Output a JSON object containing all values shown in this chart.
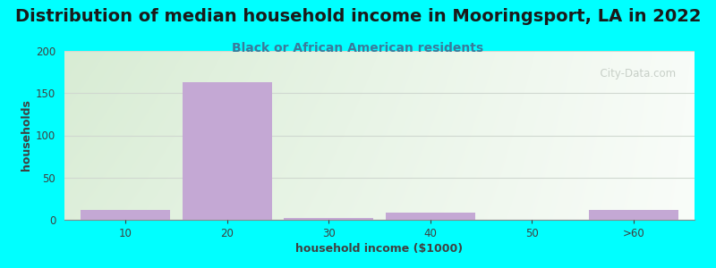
{
  "title": "Distribution of median household income in Mooringsport, LA in 2022",
  "subtitle": "Black or African American residents",
  "xlabel": "household income ($1000)",
  "ylabel": "households",
  "background_color": "#00FFFF",
  "bar_color": "#c4a8d4",
  "bar_edge_color": "#a888bc",
  "categories": [
    "10",
    "20",
    "30",
    "40",
    "50",
    ">60"
  ],
  "values": [
    12,
    163,
    2,
    8,
    0,
    12
  ],
  "ylim": [
    0,
    200
  ],
  "yticks": [
    0,
    50,
    100,
    150,
    200
  ],
  "title_fontsize": 14,
  "title_color": "#1a1a1a",
  "subtitle_fontsize": 10,
  "subtitle_color": "#3a7a9a",
  "axis_label_fontsize": 9,
  "axis_label_color": "#404040",
  "tick_fontsize": 8.5,
  "tick_color": "#404040",
  "watermark": "  City-Data.com",
  "watermark_color": "#c0c8c0",
  "grid_color": "#d0d8d0",
  "plot_bg_left_color": "#d8ecd4",
  "plot_bg_right_color": "#f4f8f2"
}
